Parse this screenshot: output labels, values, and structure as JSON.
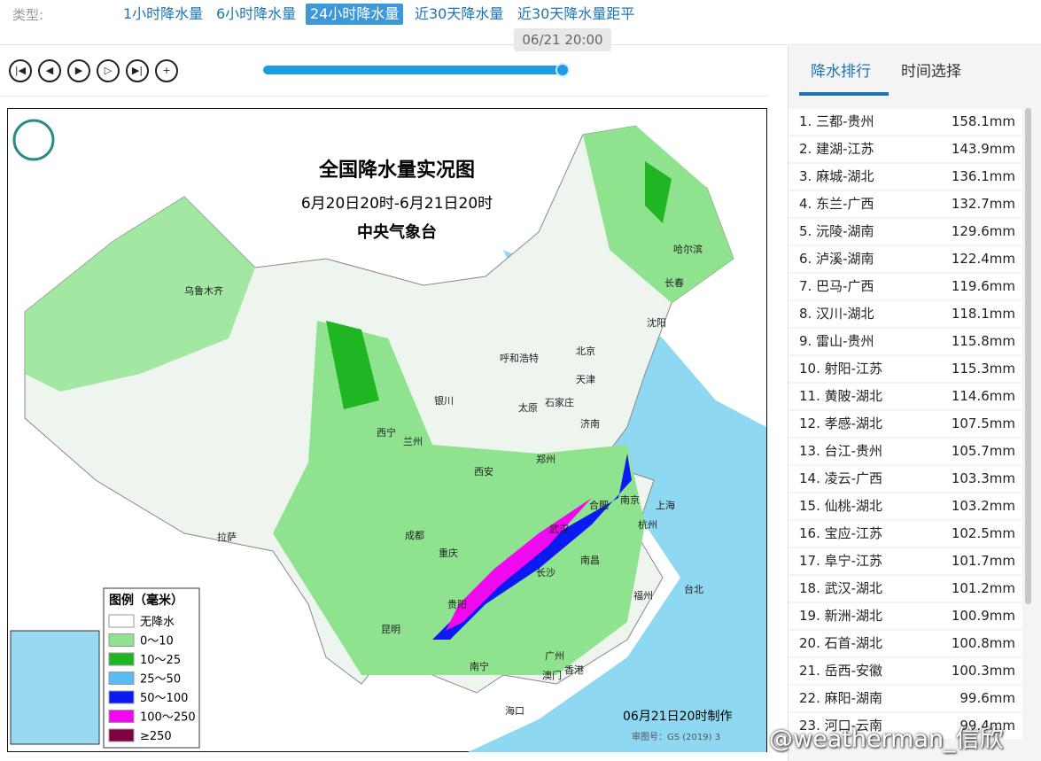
{
  "header": {
    "type_label": "类型:",
    "tabs": [
      "1小时降水量",
      "6小时降水量",
      "24小时降水量",
      "近30天降水量",
      "近30天降水量距平"
    ],
    "active_tab": 2
  },
  "player": {
    "time": "06/21 20:00"
  },
  "map": {
    "title": "全国降水量实况图",
    "period": "6月20日20时-6月21日20时",
    "agency": "中央气象台",
    "legend": {
      "title": "图例（毫米）",
      "items": [
        {
          "label": "无降水",
          "color": "#ffffff"
        },
        {
          "label": "0～10",
          "color": "#8fe38f"
        },
        {
          "label": "10～25",
          "color": "#1fb523"
        },
        {
          "label": "25～50",
          "color": "#5bbcf5"
        },
        {
          "label": "50～100",
          "color": "#0a1af0"
        },
        {
          "label": "100～250",
          "color": "#f008ee"
        },
        {
          "label": "≥250",
          "color": "#800040"
        }
      ]
    },
    "cities": [
      "乌鲁木齐",
      "哈尔滨",
      "长春",
      "沈阳",
      "呼和浩特",
      "北京",
      "天津",
      "银川",
      "石家庄",
      "太原",
      "济南",
      "西宁",
      "兰州",
      "郑州",
      "西安",
      "合肥",
      "南京",
      "上海",
      "成都",
      "武汉",
      "杭州",
      "拉萨",
      "重庆",
      "南昌",
      "长沙",
      "贵阳",
      "福州",
      "台北",
      "昆明",
      "南宁",
      "广州",
      "香港",
      "澳门",
      "海口"
    ],
    "footer": "06月21日20时制作",
    "approval": "审图号：GS (2019) 3"
  },
  "ranking": {
    "tabs": [
      "降水排行",
      "时间选择"
    ],
    "active_tab": 0,
    "rows": [
      [
        "1. 三都-贵州",
        "158.1mm"
      ],
      [
        "2. 建湖-江苏",
        "143.9mm"
      ],
      [
        "3. 麻城-湖北",
        "136.1mm"
      ],
      [
        "4. 东兰-广西",
        "132.7mm"
      ],
      [
        "5. 沅陵-湖南",
        "129.6mm"
      ],
      [
        "6. 泸溪-湖南",
        "122.4mm"
      ],
      [
        "7. 巴马-广西",
        "119.6mm"
      ],
      [
        "8. 汉川-湖北",
        "118.1mm"
      ],
      [
        "9. 雷山-贵州",
        "115.8mm"
      ],
      [
        "10. 射阳-江苏",
        "115.3mm"
      ],
      [
        "11. 黄陂-湖北",
        "114.6mm"
      ],
      [
        "12. 孝感-湖北",
        "107.5mm"
      ],
      [
        "13. 台江-贵州",
        "105.7mm"
      ],
      [
        "14. 凌云-广西",
        "103.3mm"
      ],
      [
        "15. 仙桃-湖北",
        "103.2mm"
      ],
      [
        "16. 宝应-江苏",
        "102.5mm"
      ],
      [
        "17. 阜宁-江苏",
        "101.7mm"
      ],
      [
        "18. 武汉-湖北",
        "101.2mm"
      ],
      [
        "19. 新洲-湖北",
        "100.9mm"
      ],
      [
        "20. 石首-湖北",
        "100.8mm"
      ],
      [
        "21. 岳西-安徽",
        "100.3mm"
      ],
      [
        "22. 麻阳-湖南",
        "99.6mm"
      ],
      [
        "23. 河口-云南",
        "99.4mm"
      ]
    ]
  },
  "watermark": "@weatherman_信欣"
}
